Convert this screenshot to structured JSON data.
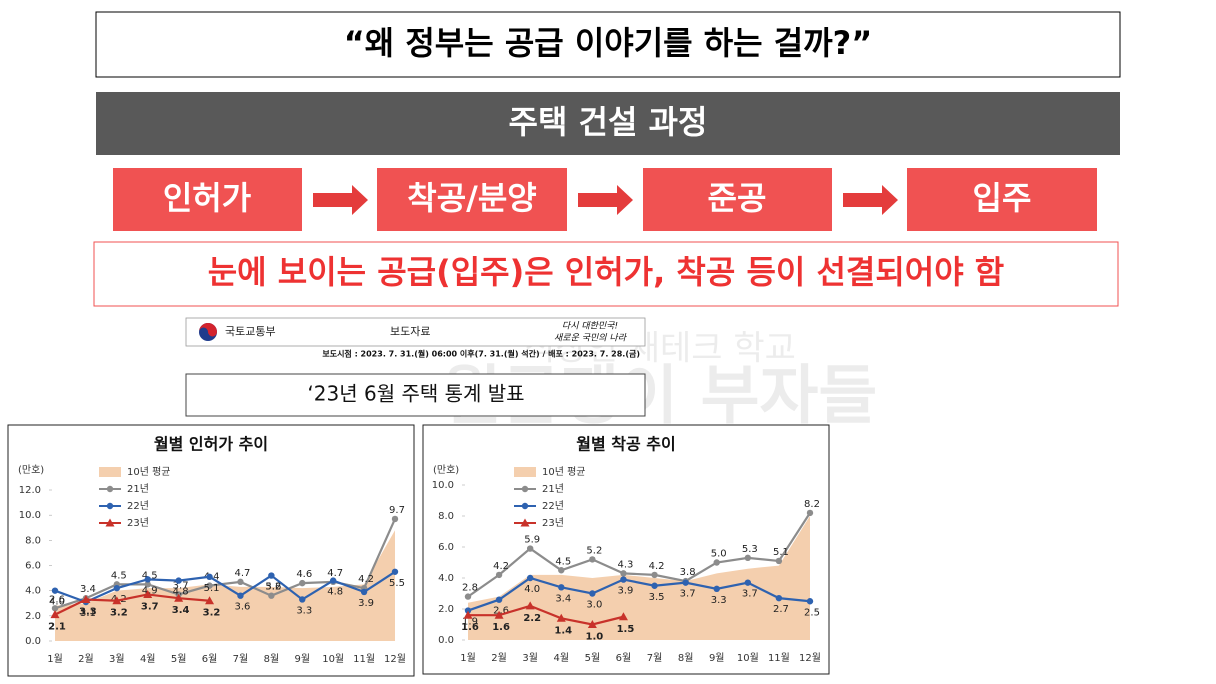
{
  "title": "“왜 정부는 공급 이야기를 하는 걸까?”",
  "process": {
    "heading": "주택 건설 과정",
    "steps": [
      "인허가",
      "착공/분양",
      "준공",
      "입주"
    ]
  },
  "note": "눈에 보이는 공급(입주)은 인허가, 착공 등이 선결되어야 함",
  "press": {
    "ministry": "국토교통부",
    "kind": "보도자료",
    "slogan": [
      "다시 대한민국!",
      "새로운 국민의 나라"
    ],
    "dates": "보도시점 : 2023. 7. 31.(월) 06:00 이후(7. 31.(월) 석간) / 배포 : 2023. 7. 28.(금)"
  },
  "announcement": "‘23년 6월 주택 통계 발표",
  "watermark": [
    "직장인 재테크 학교",
    "월급쟁이 부자들"
  ],
  "chart_data": [
    {
      "type": "line",
      "title": "월별 인허가 추이",
      "unit_label": "(만호)",
      "categories": [
        "1월",
        "2월",
        "3월",
        "4월",
        "5월",
        "6월",
        "7월",
        "8월",
        "9월",
        "10월",
        "11월",
        "12월"
      ],
      "ylim": [
        0,
        12
      ],
      "yticks": [
        {
          "value": 0,
          "label": "0.0"
        },
        {
          "value": 2,
          "label": "2.0"
        },
        {
          "value": 4,
          "label": "4.0"
        },
        {
          "value": 6,
          "label": "6.0"
        },
        {
          "value": 8,
          "label": "8.0"
        },
        {
          "value": 10,
          "label": "10.0"
        },
        {
          "value": 12,
          "label": "12.0"
        }
      ],
      "series": [
        {
          "name": "10년 평균",
          "kind": "area",
          "color": "#f4cfae",
          "values": [
            2.8,
            3.0,
            4.0,
            4.2,
            4.2,
            4.5,
            4.3,
            4.3,
            4.2,
            4.3,
            4.5,
            8.8
          ]
        },
        {
          "name": "21년",
          "kind": "line",
          "marker": "circle",
          "color": "#8c8c8c",
          "values": [
            2.6,
            3.4,
            4.5,
            4.5,
            3.7,
            4.4,
            4.7,
            3.6,
            4.6,
            4.7,
            4.2,
            9.7
          ],
          "value_labels": [
            "2.6",
            "3.4",
            "4.5",
            "4.5",
            "3.7",
            "4.4",
            "4.7",
            "3.6",
            "4.6",
            "4.7",
            "4.2",
            "9.7"
          ]
        },
        {
          "name": "22년",
          "kind": "line",
          "marker": "circle",
          "color": "#2e62b0",
          "values": [
            4.0,
            3.1,
            4.2,
            4.9,
            4.8,
            5.1,
            3.6,
            5.2,
            3.3,
            4.8,
            3.9,
            5.5
          ],
          "value_labels": [
            "4.0",
            "3.1",
            "4.2",
            "4.9",
            "4.8",
            "5.1",
            "3.6",
            "5.2",
            "3.3",
            "4.8",
            "3.9",
            "5.5"
          ]
        },
        {
          "name": "23년",
          "kind": "line",
          "marker": "triangle",
          "color": "#c8322a",
          "values": [
            2.1,
            3.3,
            3.2,
            3.7,
            3.4,
            3.2,
            null,
            null,
            null,
            null,
            null,
            null
          ],
          "value_labels": [
            "2.1",
            "3.3",
            "3.2",
            "3.7",
            "3.4",
            "3.2",
            null,
            null,
            null,
            null,
            null,
            null
          ]
        }
      ]
    },
    {
      "type": "line",
      "title": "월별 착공 추이",
      "unit_label": "(만호)",
      "categories": [
        "1월",
        "2월",
        "3월",
        "4월",
        "5월",
        "6월",
        "7월",
        "8월",
        "9월",
        "10월",
        "11월",
        "12월"
      ],
      "ylim": [
        0,
        10
      ],
      "yticks": [
        {
          "value": 0,
          "label": "0.0"
        },
        {
          "value": 2,
          "label": "2.0"
        },
        {
          "value": 4,
          "label": "4.0"
        },
        {
          "value": 6,
          "label": "6.0"
        },
        {
          "value": 8,
          "label": "8.0"
        },
        {
          "value": 10,
          "label": "10.0"
        }
      ],
      "series": [
        {
          "name": "10년 평균",
          "kind": "area",
          "color": "#f4cfae",
          "values": [
            2.4,
            2.8,
            4.2,
            4.2,
            4.0,
            4.2,
            4.0,
            3.8,
            4.3,
            4.6,
            4.8,
            8.0
          ]
        },
        {
          "name": "21년",
          "kind": "line",
          "marker": "circle",
          "color": "#8c8c8c",
          "values": [
            2.8,
            4.2,
            5.9,
            4.5,
            5.2,
            4.3,
            4.2,
            3.8,
            5.0,
            5.3,
            5.1,
            8.2
          ],
          "value_labels": [
            "2.8",
            "4.2",
            "5.9",
            "4.5",
            "5.2",
            "4.3",
            "4.2",
            "3.8",
            "5.0",
            "5.3",
            "5.1",
            "8.2"
          ]
        },
        {
          "name": "22년",
          "kind": "line",
          "marker": "circle",
          "color": "#2e62b0",
          "values": [
            1.9,
            2.6,
            4.0,
            3.4,
            3.0,
            3.9,
            3.5,
            3.7,
            3.3,
            3.7,
            2.7,
            2.5
          ],
          "value_labels": [
            "1.9",
            "2.6",
            "4.0",
            "3.4",
            "3.0",
            "3.9",
            "3.5",
            "3.7",
            "3.3",
            "3.7",
            "2.7",
            "2.5"
          ]
        },
        {
          "name": "23년",
          "kind": "line",
          "marker": "triangle",
          "color": "#c8322a",
          "values": [
            1.6,
            1.6,
            2.2,
            1.4,
            1.0,
            1.5,
            null,
            null,
            null,
            null,
            null,
            null
          ],
          "value_labels": [
            "1.6",
            "1.6",
            "2.2",
            "1.4",
            "1.0",
            "1.5",
            null,
            null,
            null,
            null,
            null,
            null
          ]
        }
      ]
    }
  ]
}
